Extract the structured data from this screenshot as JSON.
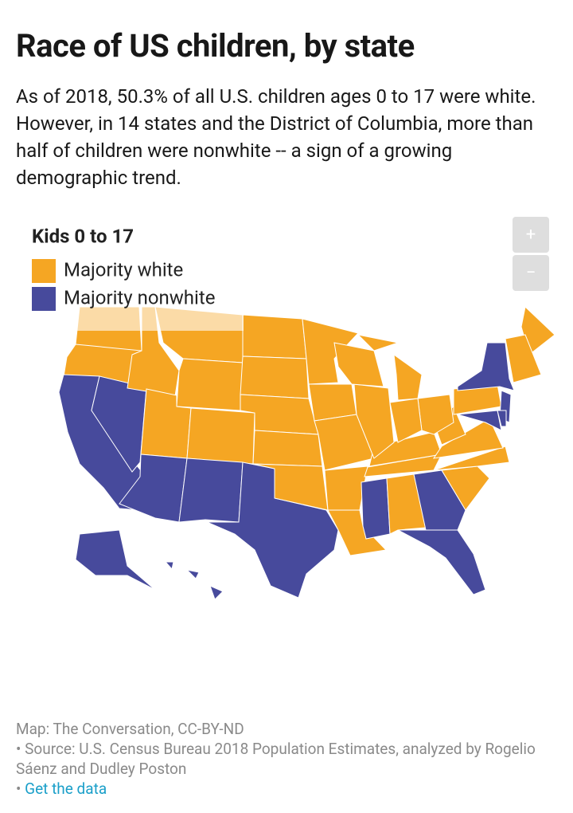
{
  "header": {
    "title": "Race of US children, by state",
    "subtitle": "As of 2018, 50.3% of all U.S. children ages 0 to 17 were white. However, in 14 states and the District of Columbia, more than half of children were nonwhite -- a sign of a growing demographic trend."
  },
  "legend": {
    "title": "Kids 0 to 17",
    "items": [
      {
        "label": "Majority white",
        "color": "#f5a623"
      },
      {
        "label": "Majority nonwhite",
        "color": "#474a9c"
      }
    ]
  },
  "controls": {
    "zoom_in": "+",
    "zoom_out": "−"
  },
  "footer": {
    "credit": "Map: The Conversation, CC-BY-ND",
    "source": "• Source: U.S. Census Bureau 2018 Population Estimates, analyzed by Rogelio Sáenz and Dudley Poston",
    "link_bullet": "•",
    "link": "Get the data"
  }
}
